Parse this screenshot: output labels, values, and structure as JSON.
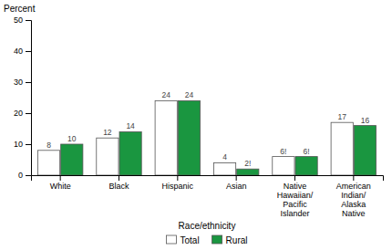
{
  "chart_data": {
    "type": "bar",
    "categories": [
      "White",
      "Black",
      "Hispanic",
      "Asian",
      "Native\nHawaiian/\nPacific\nIslander",
      "American\nIndian/\nAlaska\nNative"
    ],
    "series": [
      {
        "name": "Total",
        "color": "#ffffff",
        "values": [
          8,
          12,
          24,
          4,
          6,
          17
        ],
        "value_labels": [
          "8",
          "12",
          "24",
          "4",
          "6!",
          "17"
        ]
      },
      {
        "name": "Rural",
        "color": "#1a9640",
        "values": [
          10,
          14,
          24,
          2,
          6,
          16
        ],
        "value_labels": [
          "10",
          "14",
          "24",
          "2!",
          "6!",
          "16"
        ]
      }
    ],
    "y_label": "Percent",
    "x_label": "Race/ethnicity",
    "ylim": [
      0,
      50
    ],
    "yticks": [
      0,
      10,
      20,
      30,
      40,
      50
    ],
    "data_labels": true,
    "legend": "bottom",
    "grid": false
  }
}
